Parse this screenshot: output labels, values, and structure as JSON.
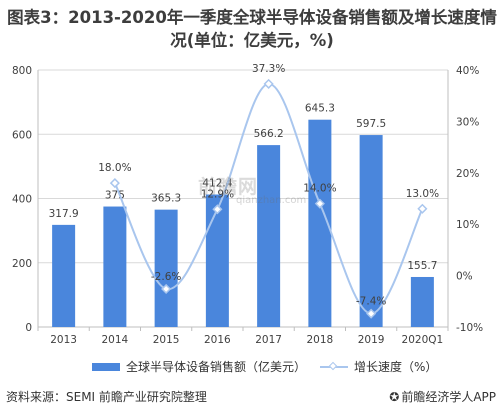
{
  "title": {
    "line1": "图表3：2013-2020年一季度全球半导体设备销售额及增长速度情",
    "line2": "况(单位：亿美元，%)"
  },
  "source": "资料来源：SEMI 前瞻产业研究院整理",
  "brand": "前瞻经济学人APP",
  "brand_icon": "qianzhan-logo-icon",
  "watermark": {
    "main": "前瞻网",
    "sub": "qianzhan.com"
  },
  "colors": {
    "bar": "#4a86dc",
    "line": "#a9c6ee",
    "grid": "#d9d9d9",
    "axis": "#bfbfbf"
  },
  "chart_data": {
    "type": "bar",
    "categories": [
      "2013",
      "2014",
      "2015",
      "2016",
      "2017",
      "2018",
      "2019",
      "2020Q1"
    ],
    "series": [
      {
        "name": "全球半导体设备销售额（亿美元）",
        "type": "bar",
        "axis": "left",
        "values": [
          317.9,
          375,
          365.3,
          412.4,
          566.2,
          645.3,
          597.5,
          155.7
        ],
        "labels": [
          "317.9",
          "375",
          "365.3",
          "412.4",
          "566.2",
          "645.3",
          "597.5",
          "155.7"
        ]
      },
      {
        "name": "增长速度（%）",
        "type": "line",
        "axis": "right",
        "smooth": true,
        "values": [
          null,
          18.0,
          -2.6,
          12.9,
          37.3,
          14.0,
          -7.4,
          13.0
        ],
        "labels": [
          "",
          "18.0%",
          "-2.6%",
          "12.9%",
          "37.3%",
          "14.0%",
          "-7.4%",
          "13.0%"
        ]
      }
    ],
    "ylim_left": [
      0,
      800
    ],
    "yticks_left": [
      "0",
      "200",
      "400",
      "600",
      "800"
    ],
    "ylim_right": [
      -10,
      40
    ],
    "yticks_right": [
      "-10%",
      "0%",
      "10%",
      "20%",
      "30%",
      "40%"
    ],
    "xlabel": "",
    "ylabel": "",
    "grid": true,
    "legend": "bottom"
  }
}
